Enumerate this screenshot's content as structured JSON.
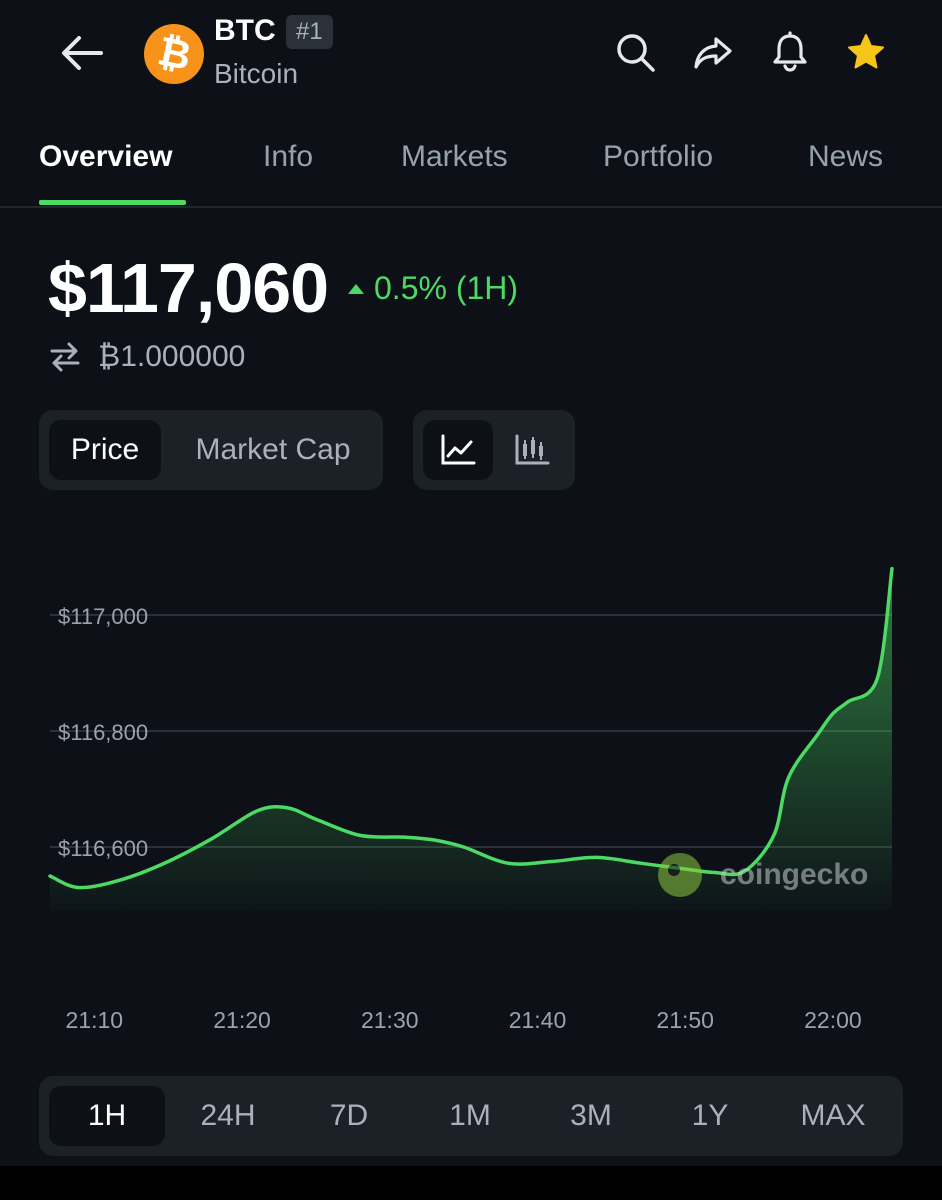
{
  "header": {
    "symbol": "BTC",
    "rank": "#1",
    "name": "Bitcoin",
    "logo_glyph": "₿",
    "icons": [
      "back-arrow-icon",
      "search-icon",
      "share-icon",
      "bell-icon",
      "star-icon"
    ],
    "colors": {
      "logo": "#f7931a",
      "star": "#f5c518"
    }
  },
  "tabs": [
    {
      "label": "Overview",
      "active": true
    },
    {
      "label": "Info",
      "active": false
    },
    {
      "label": "Markets",
      "active": false
    },
    {
      "label": "Portfolio",
      "active": false
    },
    {
      "label": "News",
      "active": false
    }
  ],
  "price": {
    "value": "$117,060",
    "change": "0.5% (1H)",
    "direction": "up",
    "btc_value": "₿1.000000",
    "up_color": "#4cd964"
  },
  "toggles": {
    "metric": [
      "Price",
      "Market Cap"
    ],
    "metric_selected": "Price",
    "chart_types": [
      "line-chart-icon",
      "candlestick-chart-icon"
    ],
    "chart_type_selected": "line-chart-icon"
  },
  "chart_data": {
    "type": "area",
    "x": [
      "21:07",
      "21:09",
      "21:12",
      "21:15",
      "21:18",
      "21:21",
      "21:23",
      "21:25",
      "21:28",
      "21:31",
      "21:33",
      "21:35",
      "21:38",
      "21:41",
      "21:44",
      "21:47",
      "21:50",
      "21:52",
      "21:54",
      "21:56",
      "21:57",
      "21:59",
      "22:00",
      "22:01",
      "22:03",
      "22:04"
    ],
    "y": [
      116550,
      116530,
      116545,
      116575,
      116615,
      116662,
      116668,
      116648,
      116620,
      116617,
      116612,
      116600,
      116572,
      116575,
      116582,
      116572,
      116562,
      116556,
      116558,
      116620,
      116720,
      116795,
      116830,
      116850,
      116890,
      117080
    ],
    "xticks": [
      "21:10",
      "21:20",
      "21:30",
      "21:40",
      "21:50",
      "22:00"
    ],
    "yticks": [
      "$116,600",
      "$116,800",
      "$117,000"
    ],
    "ylim": [
      116540,
      117100
    ],
    "line_color": "#4cd964",
    "watermark": "coingecko"
  },
  "time_range": {
    "options": [
      "1H",
      "24H",
      "7D",
      "1M",
      "3M",
      "1Y",
      "MAX"
    ],
    "selected": "1H"
  }
}
